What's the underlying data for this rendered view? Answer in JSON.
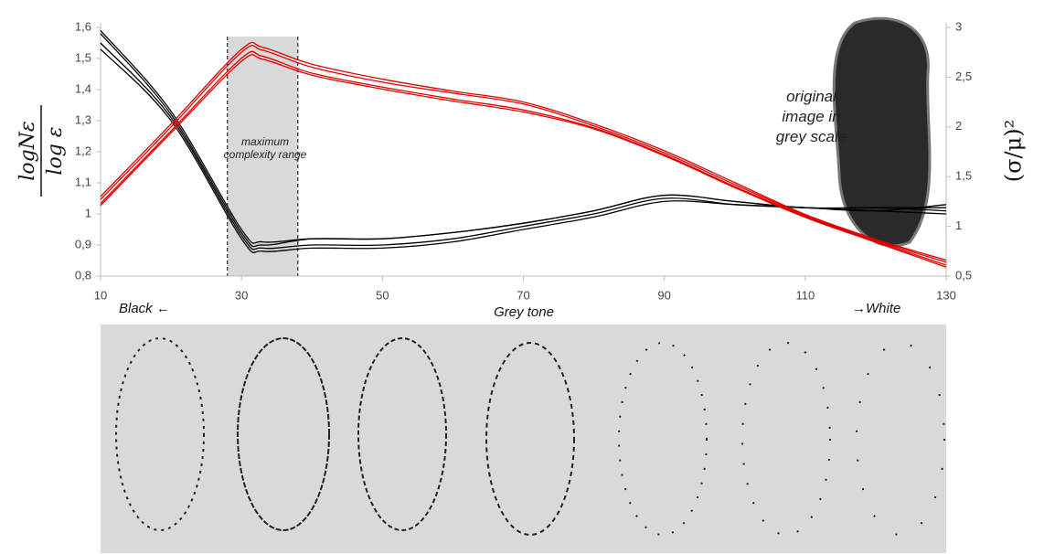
{
  "chart_data": {
    "type": "line",
    "x": [
      10,
      20,
      30,
      33,
      40,
      50,
      60,
      70,
      80,
      90,
      100,
      110,
      120,
      130
    ],
    "xlim": [
      10,
      130
    ],
    "xticks": [
      10,
      30,
      50,
      70,
      90,
      110,
      130
    ],
    "ylim": [
      0.8,
      1.6
    ],
    "yticks": [
      {
        "value": 0.8,
        "label": "0,8"
      },
      {
        "value": 0.9,
        "label": "0,9"
      },
      {
        "value": 1,
        "label": "1"
      },
      {
        "value": 1.1,
        "label": "1,1"
      },
      {
        "value": 1.2,
        "label": "1,2"
      },
      {
        "value": 1.3,
        "label": "1,3"
      },
      {
        "value": 1.4,
        "label": "1,4"
      },
      {
        "value": 1.5,
        "label": "1,5"
      },
      {
        "value": 1.6,
        "label": "1,6"
      }
    ],
    "y2lim": [
      0.5,
      3
    ],
    "y2ticks": [
      {
        "value": 0.5,
        "label": "0,5"
      },
      1,
      {
        "value": 1.5,
        "label": "1,5"
      },
      2,
      {
        "value": 2.5,
        "label": "2,5"
      },
      3
    ],
    "ylabel_numerator": "logNε",
    "ylabel_denominator": "log ε",
    "y2label": "(σ/μ)²",
    "xlabel": "Grey tone",
    "x_left_label": "Black ←",
    "x_right_label": "→White",
    "highlight_range": [
      28,
      38
    ],
    "highlight_label": "maximum complexity range",
    "image_label": "original image in grey scale",
    "series": [
      {
        "color": "#000000",
        "values": [
          1.59,
          1.33,
          0.95,
          0.91,
          0.92,
          0.92,
          0.94,
          0.97,
          1.01,
          1.06,
          1.04,
          1.02,
          1.02,
          1.02
        ]
      },
      {
        "color": "#000000",
        "values": [
          1.58,
          1.32,
          0.94,
          0.9,
          0.92,
          0.92,
          0.94,
          0.97,
          1.01,
          1.06,
          1.04,
          1.02,
          1.02,
          1.01
        ]
      },
      {
        "color": "#000000",
        "values": [
          1.55,
          1.31,
          0.93,
          0.89,
          0.9,
          0.9,
          0.92,
          0.96,
          1,
          1.05,
          1.03,
          1.02,
          1.01,
          1.03
        ]
      },
      {
        "color": "#000000",
        "values": [
          1.53,
          1.3,
          0.92,
          0.88,
          0.89,
          0.89,
          0.91,
          0.95,
          0.99,
          1.04,
          1.03,
          1.02,
          1.01,
          1
        ]
      },
      {
        "color": "#e00000",
        "axis": "y2",
        "values": [
          1.3,
          2.03,
          2.78,
          2.8,
          2.63,
          2.48,
          2.36,
          2.25,
          2.03,
          1.76,
          1.44,
          1.12,
          0.87,
          0.66
        ]
      },
      {
        "color": "#e00000",
        "axis": "y2",
        "values": [
          1.27,
          2.0,
          2.75,
          2.77,
          2.6,
          2.45,
          2.34,
          2.23,
          2.01,
          1.74,
          1.42,
          1.11,
          0.86,
          0.64
        ]
      },
      {
        "color": "#e00000",
        "axis": "y2",
        "values": [
          1.23,
          1.96,
          2.69,
          2.71,
          2.54,
          2.4,
          2.28,
          2.17,
          1.99,
          1.72,
          1.4,
          1.1,
          0.85,
          0.61
        ]
      },
      {
        "color": "#e00000",
        "axis": "y2",
        "values": [
          1.21,
          1.94,
          2.66,
          2.68,
          2.52,
          2.38,
          2.26,
          2.15,
          1.98,
          1.71,
          1.39,
          1.09,
          0.84,
          0.59
        ]
      }
    ]
  }
}
